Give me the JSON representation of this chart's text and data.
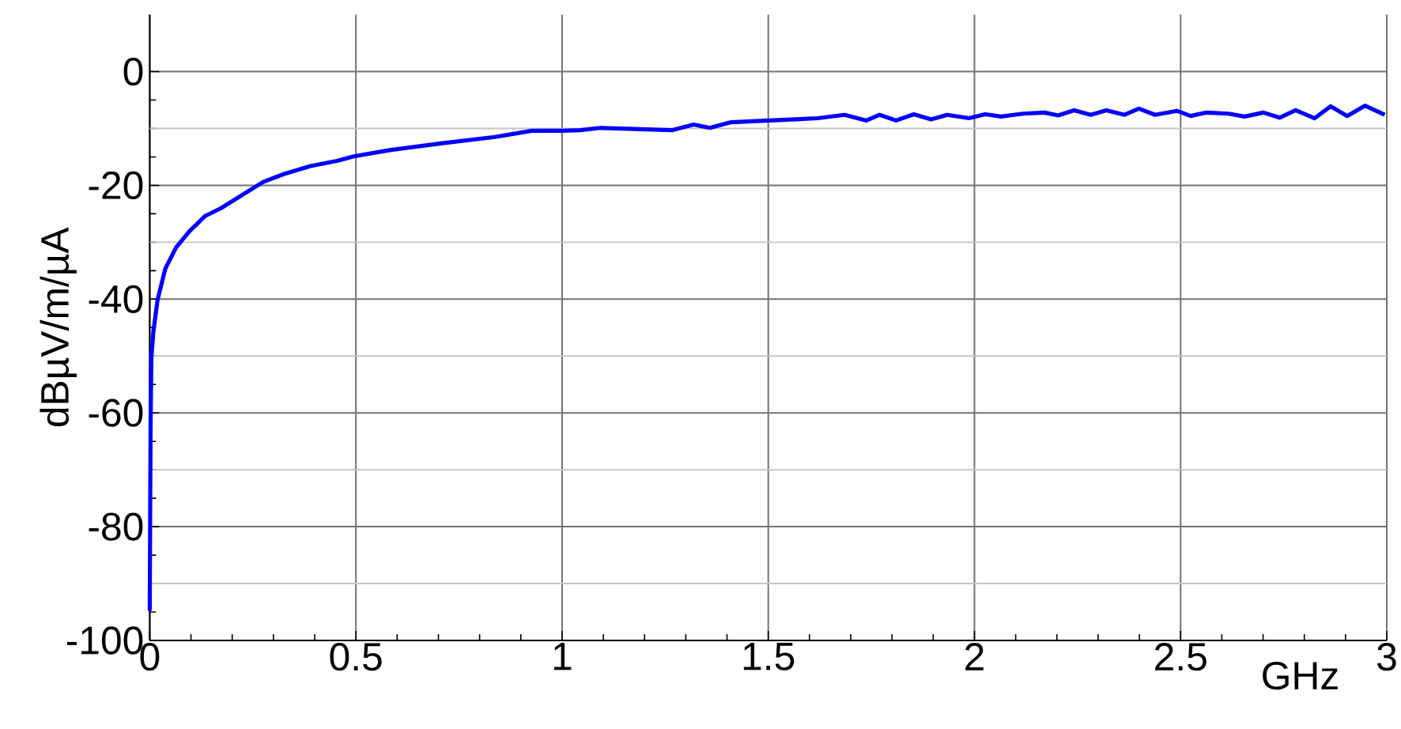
{
  "chart_data": {
    "type": "line",
    "xlabel": "GHz",
    "ylabel": "dBµV/m/µA",
    "xlim": [
      0,
      3
    ],
    "ylim": [
      -100,
      10
    ],
    "xticks": [
      0,
      0.5,
      1,
      1.5,
      2,
      2.5,
      3
    ],
    "yticks": [
      -100,
      -80,
      -60,
      -40,
      -20,
      0
    ],
    "grid": true,
    "legend": false,
    "marker": "none",
    "line_style": "solid",
    "series": [
      {
        "color": "#0000ff",
        "x": [
          0.0,
          0.002,
          0.004,
          0.009,
          0.019,
          0.038,
          0.064,
          0.096,
          0.134,
          0.173,
          0.224,
          0.275,
          0.326,
          0.39,
          0.454,
          0.495,
          0.582,
          0.71,
          0.837,
          0.927,
          1.0,
          1.044,
          1.093,
          1.175,
          1.266,
          1.319,
          1.358,
          1.41,
          1.502,
          1.62,
          1.685,
          1.738,
          1.77,
          1.81,
          1.853,
          1.895,
          1.934,
          1.987,
          2.026,
          2.065,
          2.118,
          2.17,
          2.203,
          2.242,
          2.282,
          2.32,
          2.364,
          2.399,
          2.438,
          2.491,
          2.524,
          2.563,
          2.616,
          2.655,
          2.701,
          2.74,
          2.779,
          2.825,
          2.864,
          2.904,
          2.947,
          2.995
        ],
        "values": [
          -94.8,
          -62.2,
          -50.2,
          -45.6,
          -40.1,
          -34.6,
          -30.9,
          -28.1,
          -25.4,
          -24.0,
          -21.7,
          -19.4,
          -18.0,
          -16.6,
          -15.7,
          -14.9,
          -13.8,
          -12.6,
          -11.5,
          -10.4,
          -10.4,
          -10.3,
          -9.9,
          -10.1,
          -10.3,
          -9.3,
          -9.9,
          -8.9,
          -8.6,
          -8.2,
          -7.6,
          -8.6,
          -7.6,
          -8.6,
          -7.5,
          -8.4,
          -7.6,
          -8.2,
          -7.5,
          -7.9,
          -7.4,
          -7.2,
          -7.7,
          -6.8,
          -7.6,
          -6.8,
          -7.6,
          -6.5,
          -7.6,
          -6.9,
          -7.8,
          -7.2,
          -7.4,
          -7.9,
          -7.2,
          -8.1,
          -6.8,
          -8.2,
          -6.1,
          -7.8,
          -6.0,
          -7.6
        ]
      }
    ]
  }
}
